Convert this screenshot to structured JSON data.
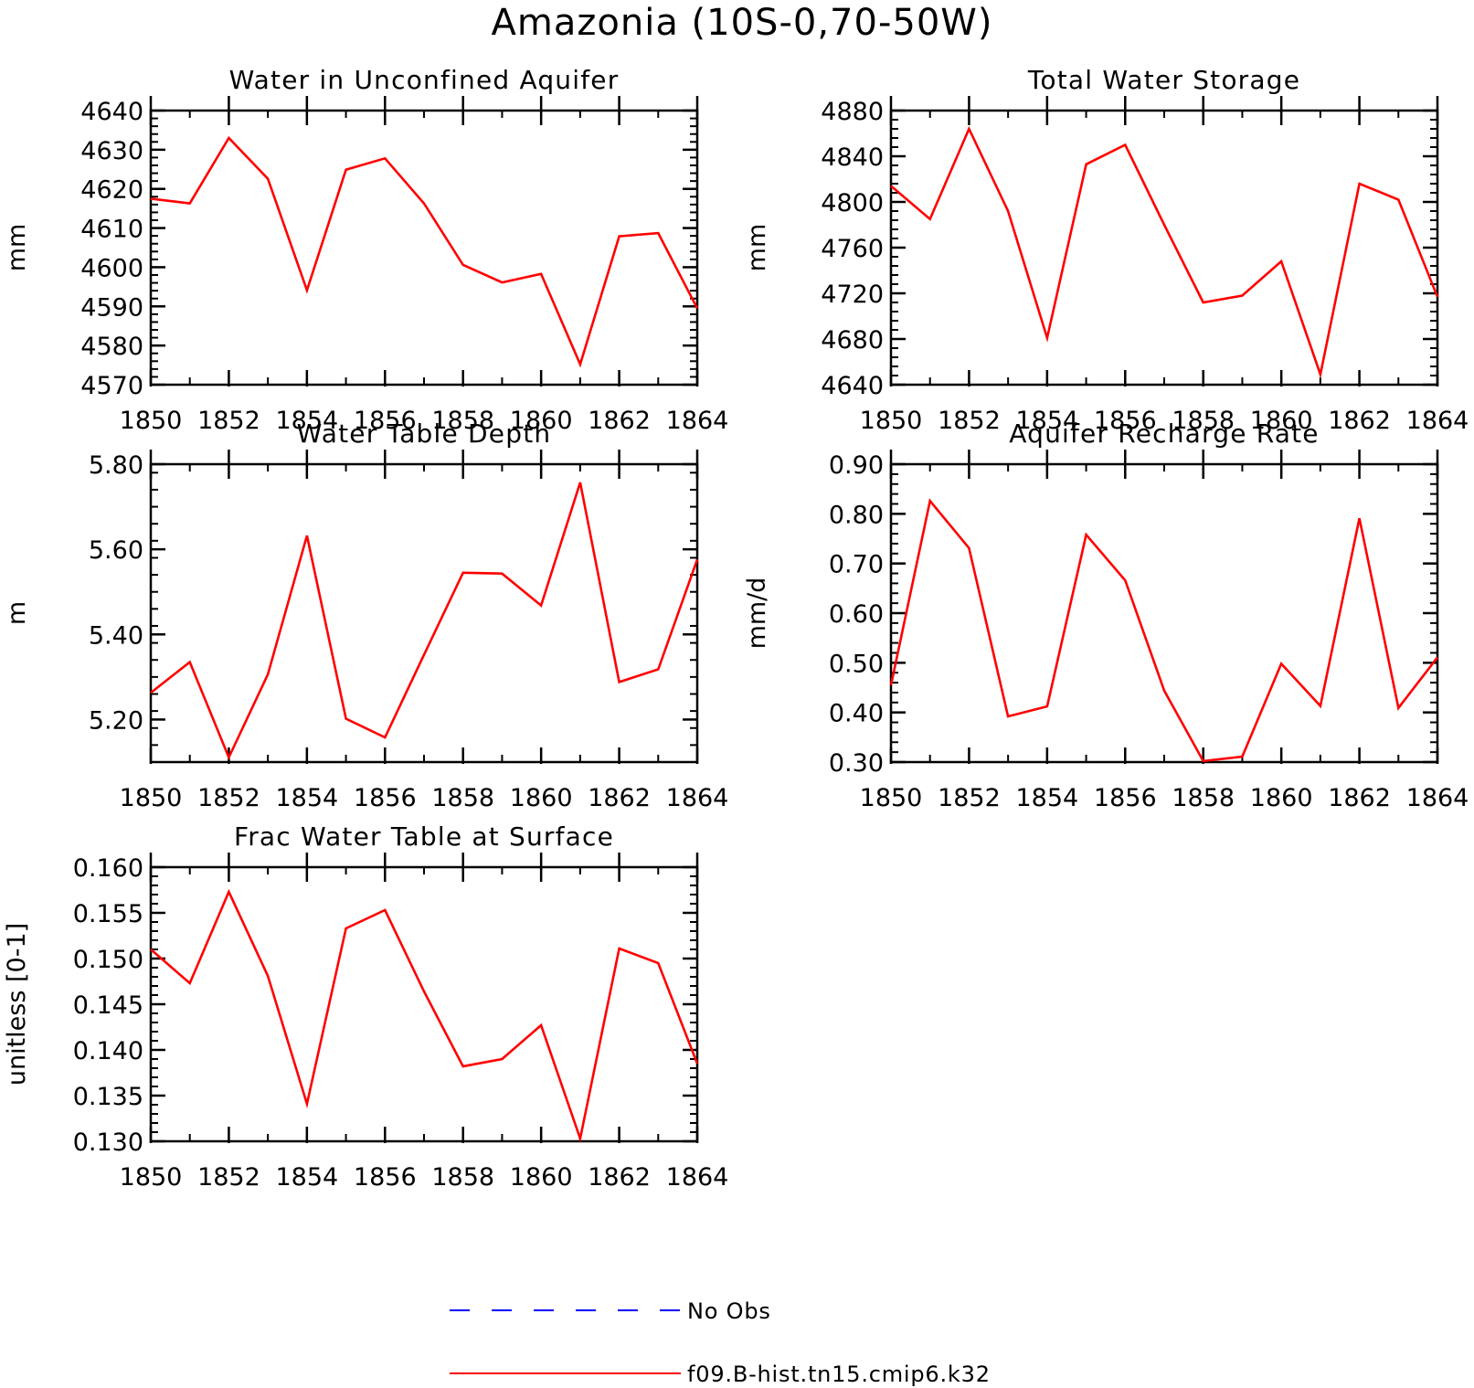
{
  "figure": {
    "title": "Amazonia (10S-0,70-50W)"
  },
  "colors": {
    "model_line": "#ff0000",
    "obs_line": "#0000ff",
    "axis": "#000000"
  },
  "legend": [
    {
      "label": "No Obs",
      "color": "#0000ff",
      "style": "dashed"
    },
    {
      "label": "f09.B-hist.tn15.cmip6.k32",
      "color": "#ff0000",
      "style": "solid"
    }
  ],
  "chart_data": [
    {
      "type": "line",
      "title": "Water in Unconfined Aquifer",
      "ylabel": "mm",
      "x": [
        1850,
        1851,
        1852,
        1853,
        1854,
        1855,
        1856,
        1857,
        1858,
        1859,
        1860,
        1861,
        1862,
        1863,
        1864
      ],
      "xlim": [
        1850,
        1864
      ],
      "xticks": [
        "1850",
        "1852",
        "1854",
        "1856",
        "1858",
        "1860",
        "1862",
        "1864"
      ],
      "ylim": [
        4570,
        4640
      ],
      "yticks": [
        "4570",
        "4580",
        "4590",
        "4600",
        "4610",
        "4620",
        "4630",
        "4640"
      ],
      "series": [
        {
          "name": "f09.B-hist.tn15.cmip6.k32",
          "values": [
            4617.5,
            4616.3,
            4633.0,
            4622.6,
            4594.1,
            4624.9,
            4627.8,
            4616.3,
            4600.6,
            4596.1,
            4598.3,
            4575.2,
            4607.9,
            4608.7,
            4589.5
          ]
        }
      ]
    },
    {
      "type": "line",
      "title": "Total Water Storage",
      "ylabel": "mm",
      "x": [
        1850,
        1851,
        1852,
        1853,
        1854,
        1855,
        1856,
        1857,
        1858,
        1859,
        1860,
        1861,
        1862,
        1863,
        1864
      ],
      "xlim": [
        1850,
        1864
      ],
      "xticks": [
        "1850",
        "1852",
        "1854",
        "1856",
        "1858",
        "1860",
        "1862",
        "1864"
      ],
      "ylim": [
        4640,
        4880
      ],
      "yticks": [
        "4640",
        "4680",
        "4720",
        "4760",
        "4800",
        "4840",
        "4880"
      ],
      "series": [
        {
          "name": "f09.B-hist.tn15.cmip6.k32",
          "values": [
            4814,
            4785,
            4864,
            4792,
            4681,
            4833,
            4850,
            4780,
            4712,
            4718,
            4748,
            4649,
            4816,
            4802,
            4717
          ]
        }
      ]
    },
    {
      "type": "line",
      "title": "Water Table Depth",
      "ylabel": "m",
      "x": [
        1850,
        1851,
        1852,
        1853,
        1854,
        1855,
        1856,
        1857,
        1858,
        1859,
        1860,
        1861,
        1862,
        1863,
        1864
      ],
      "xlim": [
        1850,
        1864
      ],
      "xticks": [
        "1850",
        "1852",
        "1854",
        "1856",
        "1858",
        "1860",
        "1862",
        "1864"
      ],
      "ylim": [
        5.1,
        5.8
      ],
      "yticks": [
        "5.20",
        "5.40",
        "5.60",
        "5.80"
      ],
      "series": [
        {
          "name": "f09.B-hist.tn15.cmip6.k32",
          "values": [
            5.263,
            5.335,
            5.111,
            5.306,
            5.632,
            5.202,
            5.158,
            5.352,
            5.545,
            5.543,
            5.468,
            5.757,
            5.288,
            5.318,
            5.576
          ]
        }
      ]
    },
    {
      "type": "line",
      "title": "Aquifer Recharge Rate",
      "ylabel": "mm/d",
      "x": [
        1850,
        1851,
        1852,
        1853,
        1854,
        1855,
        1856,
        1857,
        1858,
        1859,
        1860,
        1861,
        1862,
        1863,
        1864
      ],
      "xlim": [
        1850,
        1864
      ],
      "xticks": [
        "1850",
        "1852",
        "1854",
        "1856",
        "1858",
        "1860",
        "1862",
        "1864"
      ],
      "ylim": [
        0.3,
        0.9
      ],
      "yticks": [
        "0.30",
        "0.40",
        "0.50",
        "0.60",
        "0.70",
        "0.80",
        "0.90"
      ],
      "series": [
        {
          "name": "f09.B-hist.tn15.cmip6.k32",
          "values": [
            0.455,
            0.826,
            0.731,
            0.392,
            0.412,
            0.758,
            0.666,
            0.444,
            0.302,
            0.311,
            0.498,
            0.413,
            0.791,
            0.409,
            0.511
          ]
        }
      ]
    },
    {
      "type": "line",
      "title": "Frac Water Table at Surface",
      "ylabel": "unitless [0-1]",
      "x": [
        1850,
        1851,
        1852,
        1853,
        1854,
        1855,
        1856,
        1857,
        1858,
        1859,
        1860,
        1861,
        1862,
        1863,
        1864
      ],
      "xlim": [
        1850,
        1864
      ],
      "xticks": [
        "1850",
        "1852",
        "1854",
        "1856",
        "1858",
        "1860",
        "1862",
        "1864"
      ],
      "ylim": [
        0.13,
        0.16
      ],
      "yticks": [
        "0.130",
        "0.135",
        "0.140",
        "0.145",
        "0.150",
        "0.155",
        "0.160"
      ],
      "series": [
        {
          "name": "f09.B-hist.tn15.cmip6.k32",
          "values": [
            0.151,
            0.1473,
            0.1573,
            0.1481,
            0.1341,
            0.1533,
            0.1553,
            0.1464,
            0.1382,
            0.139,
            0.1427,
            0.1303,
            0.1511,
            0.1495,
            0.1385
          ]
        }
      ]
    }
  ]
}
